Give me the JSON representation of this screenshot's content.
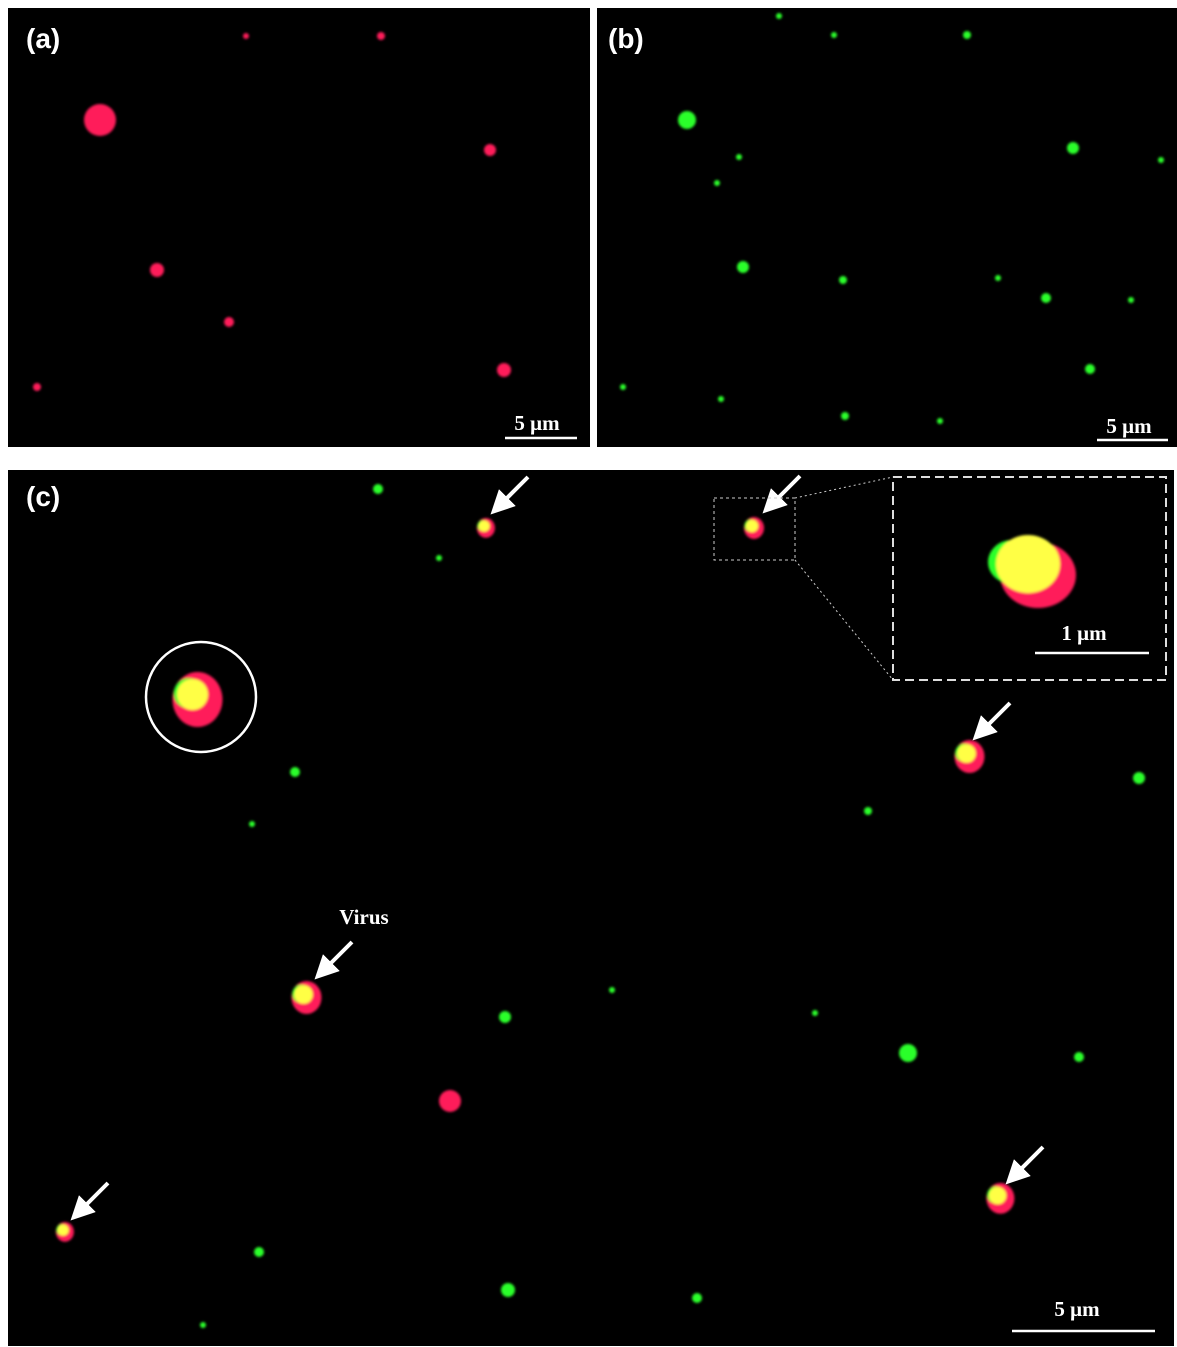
{
  "panels": [
    {
      "label": "(a)",
      "scale_bar": "5 μm"
    },
    {
      "label": "(b)",
      "scale_bar": "5 μm"
    },
    {
      "label": "(c)",
      "scale_bar": "5 μm",
      "annotation": "Virus",
      "inset_scale_bar": "1 μm"
    }
  ]
}
